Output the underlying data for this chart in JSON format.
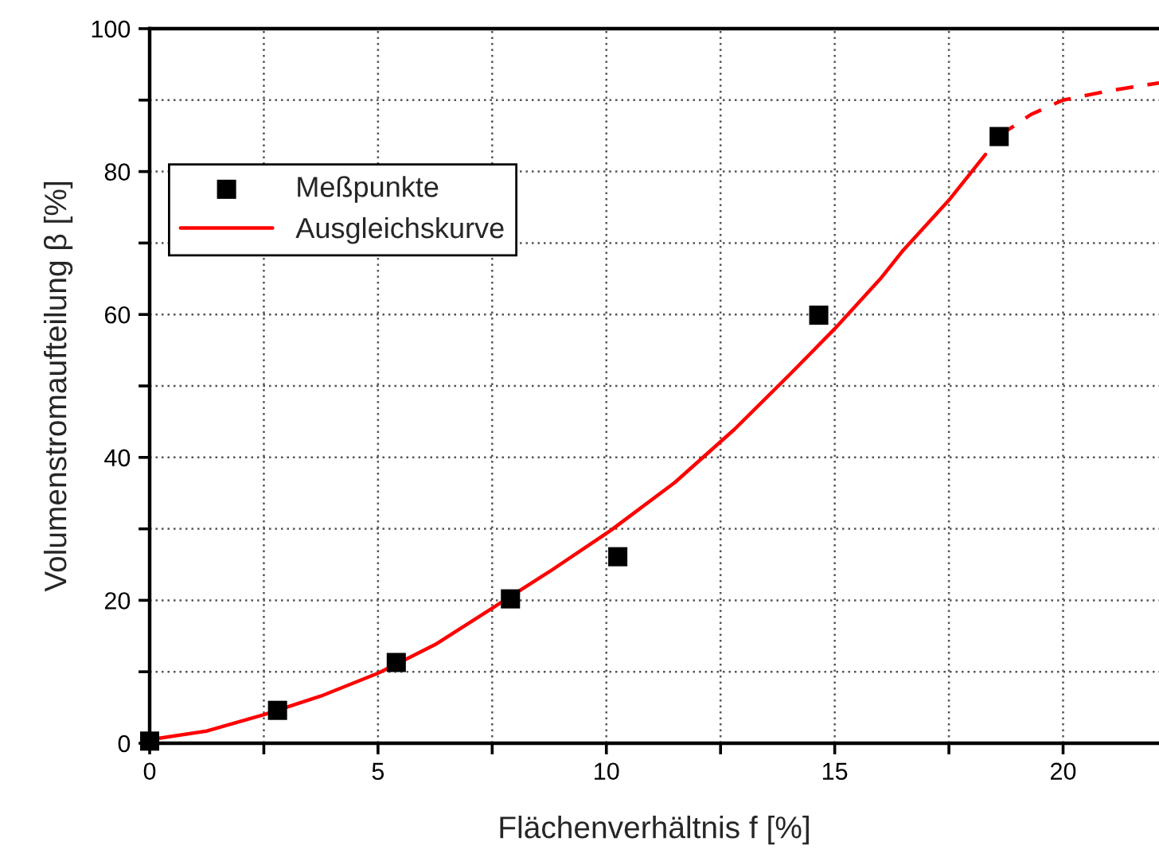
{
  "chart_data": {
    "type": "scatter",
    "xlabel": "Flächenverhältnis f [%]",
    "ylabel": "Volumenstromaufteilung β [%]",
    "xlim": [
      0,
      22.1
    ],
    "ylim": [
      0,
      100
    ],
    "xticks": [
      0,
      {
        "value": 2.5,
        "label": null
      },
      5,
      {
        "value": 7.5,
        "label": null
      },
      10,
      {
        "value": 12.5,
        "label": null
      },
      15,
      {
        "value": 17.5,
        "label": null
      },
      20
    ],
    "yticks": [
      0,
      {
        "value": 10,
        "label": null
      },
      20,
      {
        "value": 30,
        "label": null
      },
      40,
      {
        "value": 50,
        "label": null
      },
      60,
      {
        "value": 70,
        "label": null
      },
      80,
      {
        "value": 90,
        "label": null
      },
      100
    ],
    "grid": true,
    "legend": "top left",
    "series": [
      {
        "name": "Meßpunkte",
        "marker": "square",
        "color": "#000000",
        "x": [
          0,
          2.8,
          5.4,
          7.9,
          10.25,
          14.65,
          18.6
        ],
        "values": [
          0.3,
          4.6,
          11.3,
          20.2,
          26.1,
          59.9,
          84.9
        ]
      },
      {
        "name": "Ausgleichskurve",
        "type": "line",
        "line_style": "solid",
        "color": "#ff0000",
        "x": [
          0,
          1.25,
          2.5,
          3.75,
          5,
          6.25,
          7.5,
          8.75,
          10.1,
          11.5,
          12.8,
          14,
          15,
          16,
          16.5,
          17.5,
          18.3
        ],
        "values": [
          0.5,
          1.7,
          4.0,
          6.6,
          9.8,
          13.8,
          18.9,
          24,
          29.8,
          36.5,
          43.9,
          51.5,
          58,
          65,
          69,
          76,
          82.4
        ]
      },
      {
        "type": "line",
        "line_style": "dashed",
        "color": "#ff0000",
        "x": [
          18.6,
          19.3,
          20,
          21,
          22.1
        ],
        "values": [
          85,
          88,
          90,
          91.3,
          92.4
        ]
      }
    ]
  }
}
